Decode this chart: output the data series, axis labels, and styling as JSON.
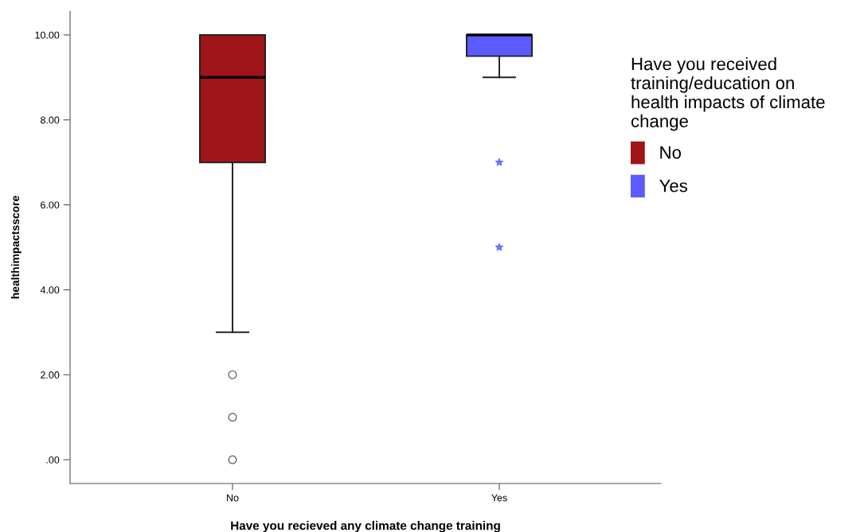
{
  "chart_data": {
    "type": "box",
    "xlabel": "Have you recieved any climate change training",
    "ylabel": "healthimpactsscore",
    "legend_title": "Have you received\ntraining/education on\nhealth impacts of climate\nchange",
    "legend": "right",
    "grid": false,
    "categories": [
      "No",
      "Yes"
    ],
    "ylim": [
      -0.56,
      10.56
    ],
    "yticks": [
      {
        "value": 0,
        "label": ".00"
      },
      {
        "value": 2,
        "label": "2.00"
      },
      {
        "value": 4,
        "label": "4.00"
      },
      {
        "value": 6,
        "label": "6.00"
      },
      {
        "value": 8,
        "label": "8.00"
      },
      {
        "value": 10,
        "label": "10.00"
      }
    ],
    "series": [
      {
        "name": "No",
        "color": "#a0151a",
        "marker": "circle",
        "boxes": [
          {
            "low": 3,
            "q1": 7,
            "median": 9,
            "q3": 10,
            "high": 10,
            "outliers": [
              2,
              1,
              0
            ]
          },
          null
        ]
      },
      {
        "name": "Yes",
        "color": "#5b5bff",
        "marker": "star",
        "boxes": [
          null,
          {
            "low": 9,
            "q1": 9.5,
            "median": 10,
            "q3": 10,
            "high": 10,
            "outliers": [
              7,
              5
            ]
          }
        ]
      }
    ]
  }
}
